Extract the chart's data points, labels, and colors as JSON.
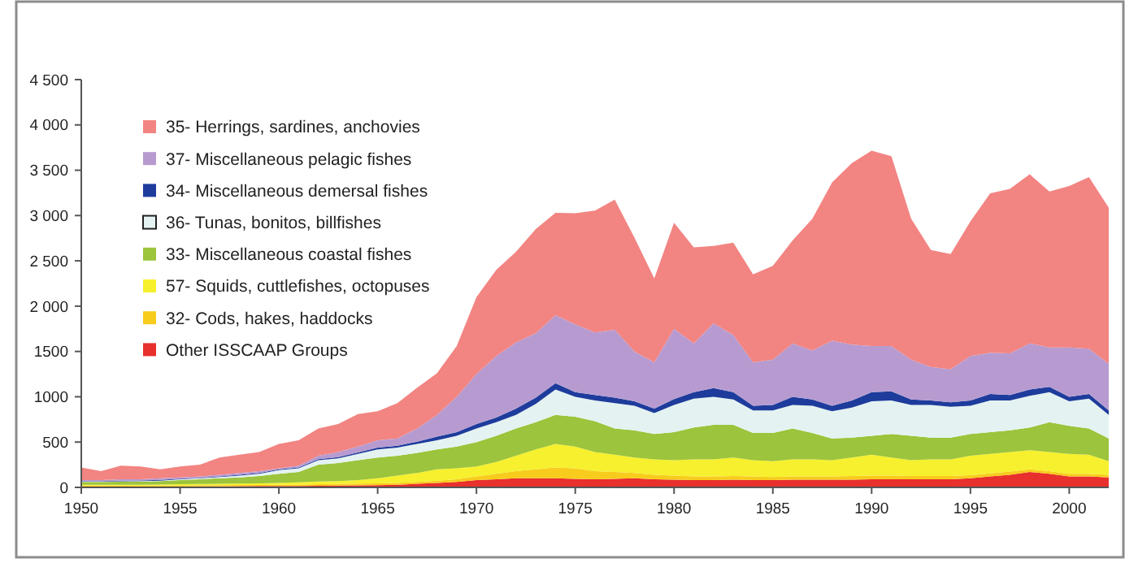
{
  "chart_data": {
    "type": "area",
    "stacked": true,
    "x": [
      1950,
      1951,
      1952,
      1953,
      1954,
      1955,
      1956,
      1957,
      1958,
      1959,
      1960,
      1961,
      1962,
      1963,
      1964,
      1965,
      1966,
      1967,
      1968,
      1969,
      1970,
      1971,
      1972,
      1973,
      1974,
      1975,
      1976,
      1977,
      1978,
      1979,
      1980,
      1981,
      1982,
      1983,
      1984,
      1985,
      1986,
      1987,
      1988,
      1989,
      1990,
      1991,
      1992,
      1993,
      1994,
      1995,
      1996,
      1997,
      1998,
      1999,
      2000,
      2001,
      2002
    ],
    "series": [
      {
        "name": "Other ISSCAAP Groups",
        "color": "#e8302c",
        "values": [
          10,
          10,
          10,
          10,
          10,
          10,
          12,
          12,
          14,
          15,
          15,
          15,
          18,
          20,
          22,
          25,
          30,
          40,
          50,
          60,
          80,
          90,
          100,
          100,
          100,
          95,
          90,
          95,
          100,
          90,
          85,
          80,
          80,
          85,
          80,
          80,
          85,
          85,
          85,
          85,
          90,
          90,
          90,
          90,
          90,
          100,
          120,
          140,
          170,
          150,
          120,
          120,
          110
        ]
      },
      {
        "name": "32- Cods, hakes, haddocks",
        "color": "#f8cc1c",
        "values": [
          10,
          10,
          10,
          10,
          10,
          12,
          12,
          13,
          12,
          13,
          15,
          15,
          17,
          18,
          20,
          20,
          20,
          20,
          25,
          30,
          40,
          60,
          80,
          100,
          120,
          115,
          90,
          75,
          60,
          50,
          45,
          40,
          40,
          40,
          40,
          35,
          35,
          35,
          35,
          40,
          40,
          40,
          35,
          35,
          35,
          35,
          35,
          35,
          30,
          30,
          30,
          30,
          30
        ]
      },
      {
        "name": "57- Squids, cuttlefishes, octopuses",
        "color": "#f6f02e",
        "values": [
          10,
          10,
          10,
          10,
          12,
          13,
          14,
          15,
          16,
          17,
          20,
          25,
          30,
          32,
          38,
          55,
          80,
          100,
          125,
          120,
          110,
          130,
          170,
          220,
          260,
          240,
          210,
          190,
          170,
          170,
          170,
          190,
          190,
          205,
          180,
          175,
          190,
          190,
          180,
          205,
          230,
          200,
          175,
          185,
          185,
          215,
          215,
          215,
          210,
          210,
          220,
          210,
          150
        ]
      },
      {
        "name": "33- Miscellaneous coastal fishes",
        "color": "#9cc43c",
        "values": [
          30,
          30,
          32,
          35,
          38,
          45,
          52,
          60,
          68,
          80,
          100,
          115,
          185,
          200,
          220,
          230,
          220,
          220,
          220,
          240,
          270,
          290,
          300,
          300,
          320,
          330,
          340,
          290,
          300,
          280,
          310,
          350,
          380,
          360,
          300,
          310,
          340,
          290,
          240,
          220,
          210,
          260,
          270,
          240,
          240,
          240,
          240,
          240,
          250,
          330,
          310,
          290,
          250
        ]
      },
      {
        "name": "36- Tunas, bonitos, billfishes",
        "color": "#e4f3f1",
        "values": [
          5,
          5,
          6,
          5,
          5,
          10,
          10,
          15,
          20,
          25,
          40,
          40,
          50,
          50,
          70,
          90,
          90,
          100,
          100,
          120,
          150,
          150,
          150,
          200,
          280,
          220,
          230,
          280,
          270,
          230,
          300,
          320,
          310,
          280,
          250,
          250,
          260,
          300,
          300,
          330,
          380,
          370,
          340,
          360,
          340,
          310,
          350,
          330,
          350,
          330,
          270,
          330,
          260
        ]
      },
      {
        "name": "34- Miscellaneous demersal fishes",
        "color": "#1e3c9c",
        "values": [
          5,
          5,
          6,
          6,
          7,
          6,
          6,
          7,
          8,
          10,
          10,
          10,
          12,
          15,
          15,
          20,
          20,
          25,
          40,
          40,
          50,
          50,
          70,
          70,
          70,
          50,
          60,
          60,
          50,
          50,
          65,
          70,
          95,
          80,
          50,
          60,
          90,
          70,
          60,
          80,
          100,
          100,
          60,
          50,
          50,
          60,
          70,
          60,
          70,
          60,
          50,
          50,
          50
        ]
      },
      {
        "name": "37- Miscellaneous pelagic fishes",
        "color": "#b79bd0",
        "values": [
          10,
          10,
          16,
          14,
          18,
          14,
          14,
          18,
          22,
          20,
          10,
          20,
          38,
          55,
          65,
          80,
          80,
          145,
          240,
          390,
          550,
          680,
          730,
          710,
          750,
          750,
          690,
          750,
          550,
          510,
          775,
          540,
          715,
          630,
          480,
          500,
          590,
          540,
          720,
          615,
          510,
          500,
          440,
          370,
          365,
          490,
          455,
          460,
          510,
          435,
          545,
          500,
          515
        ]
      },
      {
        "name": "35- Herrings, sardines, anchovies",
        "color": "#f28482",
        "values": [
          140,
          100,
          150,
          140,
          100,
          120,
          130,
          190,
          200,
          210,
          270,
          280,
          300,
          310,
          360,
          320,
          390,
          450,
          460,
          560,
          850,
          950,
          1000,
          1150,
          1130,
          1225,
          1345,
          1435,
          1255,
          925,
          1170,
          1060,
          855,
          1020,
          970,
          1035,
          1135,
          1455,
          1745,
          2005,
          2155,
          2095,
          1555,
          1290,
          1270,
          1485,
          1760,
          1815,
          1865,
          1720,
          1780,
          1895,
          1720
        ]
      }
    ],
    "xlim": [
      1950,
      2002
    ],
    "xticks": [
      1950,
      1955,
      1960,
      1965,
      1970,
      1975,
      1980,
      1985,
      1990,
      1995,
      2000
    ],
    "ylim": [
      0,
      4500
    ],
    "yticks": [
      0,
      500,
      1000,
      1500,
      {
        "value": 2000,
        "label": "2 000"
      },
      {
        "value": 2500,
        "label": "2 500"
      },
      {
        "value": 3000,
        "label": "3 000"
      },
      {
        "value": 3500,
        "label": "3 500"
      },
      {
        "value": 4000,
        "label": "4 000"
      },
      {
        "value": 4500,
        "label": "4 500"
      }
    ],
    "legend": "top left",
    "grid": false
  }
}
